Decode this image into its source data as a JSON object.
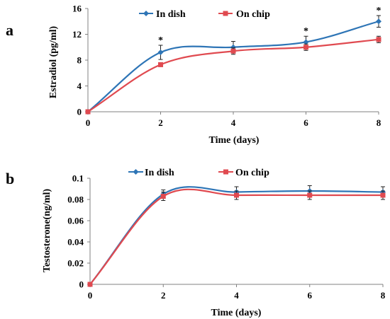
{
  "chart_data": [
    {
      "type": "line",
      "panel_label": "a",
      "x": [
        0,
        2,
        4,
        6,
        8
      ],
      "xticks": [
        "0",
        "2",
        "4",
        "6",
        "8"
      ],
      "yticks": [
        "0",
        "4",
        "8",
        "12",
        "16"
      ],
      "xlabel": "Time (days)",
      "ylabel": "Estradiol (pg/ml)",
      "xlim": [
        0,
        8
      ],
      "ylim": [
        0,
        16
      ],
      "grid": false,
      "legend_position": "top",
      "series": [
        {
          "name": "In dish",
          "color": "#2e75b6",
          "marker": "diamond",
          "values": [
            0,
            9.2,
            10.0,
            10.8,
            14.0
          ],
          "errors": [
            0,
            1.1,
            0.9,
            0.9,
            0.9
          ]
        },
        {
          "name": "On chip",
          "color": "#e04a50",
          "marker": "square",
          "values": [
            0,
            7.3,
            9.4,
            10.0,
            11.2
          ],
          "errors": [
            0,
            0.3,
            0.5,
            0.5,
            0.5
          ]
        }
      ],
      "annotations": [
        {
          "text": "*",
          "x": 2
        },
        {
          "text": "*",
          "x": 6
        },
        {
          "text": "*",
          "x": 8
        }
      ]
    },
    {
      "type": "line",
      "panel_label": "b",
      "x": [
        0,
        2,
        4,
        6,
        8
      ],
      "xticks": [
        "0",
        "2",
        "4",
        "6",
        "8"
      ],
      "yticks": [
        "0",
        "0.02",
        "0.04",
        "0.06",
        "0.08",
        "0.1"
      ],
      "xlabel": "Time (days)",
      "ylabel": "Testosterone(ng/ml)",
      "xlim": [
        0,
        8
      ],
      "ylim": [
        0,
        0.1
      ],
      "grid": false,
      "legend_position": "top",
      "series": [
        {
          "name": "In dish",
          "color": "#2e75b6",
          "marker": "diamond",
          "values": [
            0,
            0.085,
            0.087,
            0.088,
            0.087
          ],
          "errors": [
            0,
            0.004,
            0.005,
            0.005,
            0.005
          ]
        },
        {
          "name": "On chip",
          "color": "#e04a50",
          "marker": "square",
          "values": [
            0,
            0.083,
            0.084,
            0.084,
            0.084
          ],
          "errors": [
            0,
            0.004,
            0.004,
            0.004,
            0.004
          ]
        }
      ]
    }
  ]
}
